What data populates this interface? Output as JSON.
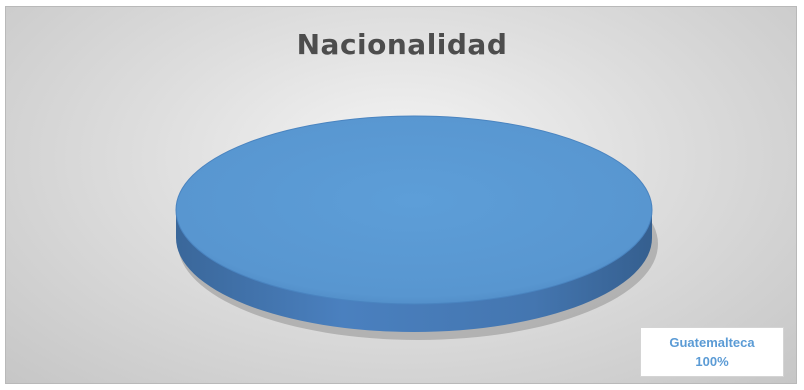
{
  "chart_data": {
    "type": "pie",
    "title": "Nacionalidad",
    "categories": [
      "Guatemalteca"
    ],
    "values": [
      100
    ],
    "labels": [
      {
        "name": "Guatemalteca",
        "value_label": "100%"
      }
    ],
    "colors": {
      "slice_top": "#5b9bd5",
      "slice_edge": "#3d6fa6",
      "label_text": "#5b9bd5"
    },
    "style": "3d-pie",
    "legend": "none"
  }
}
